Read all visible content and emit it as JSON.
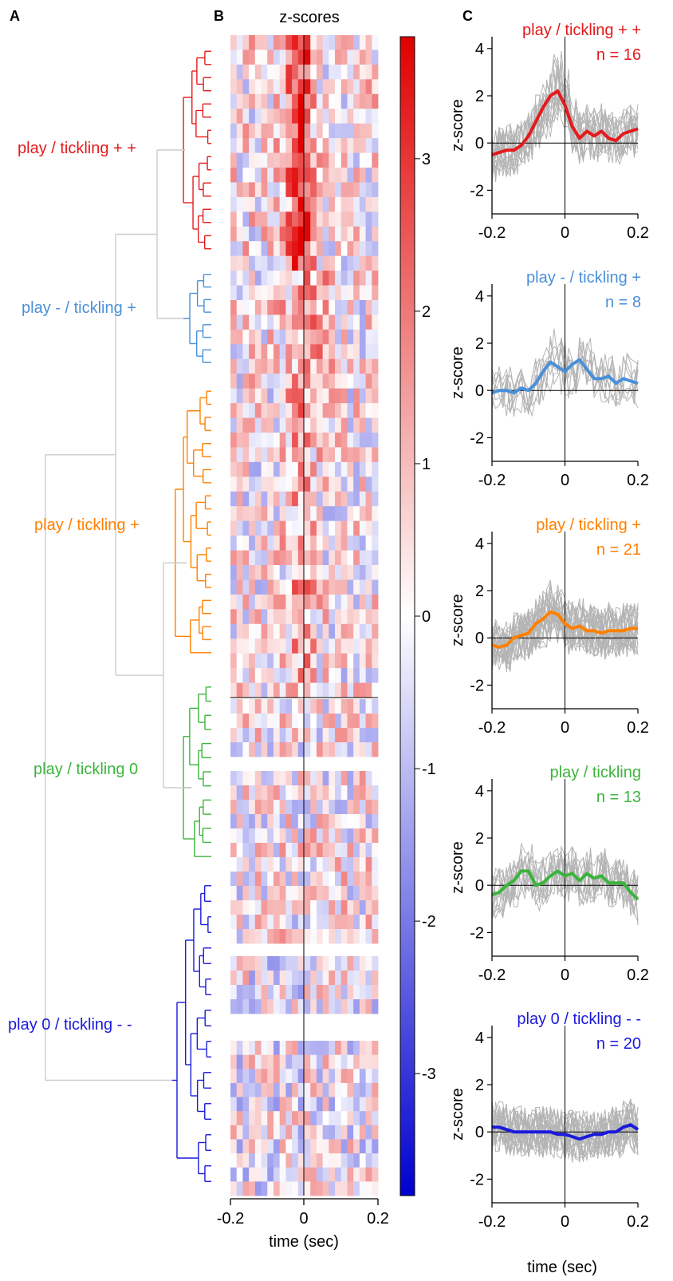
{
  "panels": {
    "A": "A",
    "B": "B",
    "C": "C"
  },
  "colors": {
    "cluster1": "#e41a1c",
    "cluster2": "#4a90d9",
    "cluster3": "#ff8000",
    "cluster4": "#3cb43c",
    "cluster5": "#1a1adc",
    "dendro_root": "#cccccc",
    "trace": "#b4b4b4"
  },
  "clusters": [
    {
      "label": "play / tickling + +",
      "n_label": "n = 16",
      "n": 16
    },
    {
      "label": "play - / tickling +",
      "n_label": "n = 8",
      "n": 8
    },
    {
      "label": "play / tickling +",
      "n_label": "n = 21",
      "n": 21
    },
    {
      "label": "play / tickling 0",
      "n_label": "n = 13",
      "n": 13
    },
    {
      "label": "play 0 / tickling - -",
      "n_label": "n = 20",
      "n": 20
    }
  ],
  "c_titles": [
    "play / tickling + +",
    "play - / tickling +",
    "play / tickling +",
    "play / tickling",
    "play 0 / tickling - -"
  ],
  "chart_data": [
    {
      "type": "heatmap",
      "title": "z-scores",
      "xlabel": "time (sec)",
      "xlim": [
        -0.2,
        0.2
      ],
      "x_ticks": [
        "-0.2",
        "0",
        "0.2"
      ],
      "rows": 78,
      "colorbar": {
        "range": [
          -3.8,
          3.8
        ],
        "ticks": [
          "3",
          "2",
          "1",
          "0",
          "-1",
          "-2",
          "-3"
        ],
        "tick_values": [
          3,
          2,
          1,
          0,
          -1,
          -2,
          -3
        ],
        "colormap": "blue-white-red"
      }
    },
    {
      "type": "line",
      "panel": "C",
      "ylabel": "z-score",
      "xlabel": "time (sec)",
      "xlim": [
        -0.2,
        0.2
      ],
      "ylim": [
        -3,
        4.5
      ],
      "x_ticks": [
        "-0.2",
        "0",
        "0.2"
      ],
      "y_ticks": [
        "4",
        "2",
        "0",
        "-2"
      ],
      "x": [
        -0.2,
        -0.18,
        -0.16,
        -0.14,
        -0.12,
        -0.1,
        -0.08,
        -0.06,
        -0.04,
        -0.02,
        0,
        0.02,
        0.04,
        0.06,
        0.08,
        0.1,
        0.12,
        0.14,
        0.16,
        0.18,
        0.2
      ],
      "series": [
        {
          "values": [
            -0.5,
            -0.4,
            -0.3,
            -0.3,
            -0.1,
            0.3,
            0.9,
            1.5,
            2.0,
            2.2,
            1.6,
            0.7,
            0.2,
            0.5,
            0.3,
            0.5,
            0.2,
            0.1,
            0.4,
            0.5,
            0.6
          ]
        },
        {
          "values": [
            -0.1,
            0.0,
            0.0,
            -0.1,
            0.1,
            0.0,
            0.3,
            0.8,
            1.2,
            1.0,
            0.8,
            1.1,
            1.3,
            0.9,
            0.5,
            0.5,
            0.6,
            0.3,
            0.5,
            0.4,
            0.3
          ]
        },
        {
          "values": [
            -0.3,
            -0.4,
            -0.3,
            0.0,
            0.1,
            0.2,
            0.6,
            0.8,
            1.1,
            1.0,
            0.6,
            0.4,
            0.5,
            0.3,
            0.3,
            0.2,
            0.3,
            0.3,
            0.3,
            0.4,
            0.4
          ]
        },
        {
          "values": [
            -0.4,
            -0.3,
            0.0,
            0.2,
            0.6,
            0.6,
            0.0,
            0.1,
            0.4,
            0.6,
            0.4,
            0.5,
            0.2,
            0.5,
            0.3,
            0.4,
            0.1,
            0.1,
            0.1,
            -0.3,
            -0.6
          ]
        },
        {
          "values": [
            0.2,
            0.2,
            0.1,
            0.0,
            0.0,
            0.0,
            0.0,
            0.0,
            0.0,
            -0.1,
            -0.1,
            -0.2,
            -0.3,
            -0.2,
            -0.1,
            -0.1,
            0.0,
            0.0,
            0.2,
            0.3,
            0.1
          ]
        }
      ]
    }
  ]
}
